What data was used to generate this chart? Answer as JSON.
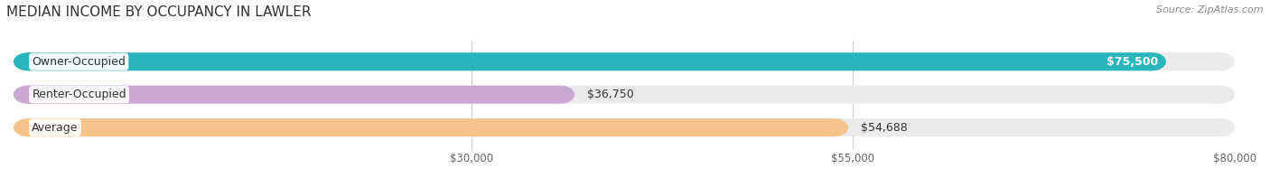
{
  "title": "MEDIAN INCOME BY OCCUPANCY IN LAWLER",
  "source": "Source: ZipAtlas.com",
  "categories": [
    "Owner-Occupied",
    "Renter-Occupied",
    "Average"
  ],
  "values": [
    75500,
    36750,
    54688
  ],
  "value_labels": [
    "$75,500",
    "$36,750",
    "$54,688"
  ],
  "bar_colors": [
    "#2ab5bc",
    "#c9a8d4",
    "#f5c48a"
  ],
  "bar_bg_color": "#ebebeb",
  "xmin": 0,
  "xmax": 80000,
  "xticks": [
    30000,
    55000,
    80000
  ],
  "xtick_labels": [
    "$30,000",
    "$55,000",
    "$80,000"
  ],
  "title_fontsize": 11,
  "source_fontsize": 8,
  "cat_fontsize": 9,
  "val_fontsize": 9,
  "bar_height": 0.55,
  "figsize": [
    14.06,
    1.97
  ],
  "dpi": 100
}
